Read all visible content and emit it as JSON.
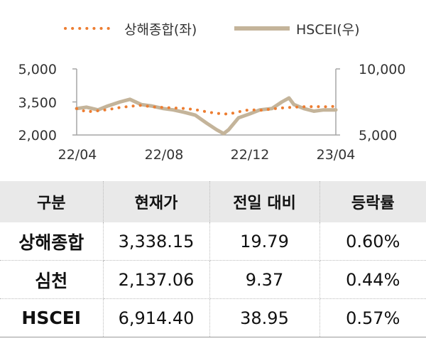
{
  "chart_data": {
    "type": "line",
    "x_ticks": [
      "22/04",
      "22/08",
      "22/12",
      "23/04"
    ],
    "legend": {
      "position": "top",
      "entries": [
        "상해종합(좌)",
        "HSCEI(우)"
      ]
    },
    "y_left": {
      "ticks": [
        "5,000",
        "3,500",
        "2,000"
      ],
      "range": [
        2000,
        5000
      ]
    },
    "y_right": {
      "ticks": [
        "10,000",
        "5,000"
      ],
      "range": [
        5000,
        10000
      ]
    },
    "series": [
      {
        "name": "상해종합(좌)",
        "axis": "left",
        "style": "dotted",
        "color": "#ED7D31",
        "x": [
          "22/04/01",
          "22/04/15",
          "22/05/01",
          "22/05/15",
          "22/06/01",
          "22/06/15",
          "22/07/01",
          "22/07/15",
          "22/08/01",
          "22/08/15",
          "22/09/01",
          "22/09/15",
          "22/10/01",
          "22/10/15",
          "22/11/01",
          "22/11/15",
          "22/12/01",
          "22/12/15",
          "23/01/01",
          "23/01/15",
          "23/02/01",
          "23/02/15",
          "23/03/01",
          "23/03/15",
          "23/04/01"
        ],
        "values": [
          3200,
          3050,
          3100,
          3150,
          3250,
          3300,
          3350,
          3280,
          3250,
          3230,
          3200,
          3150,
          3050,
          2980,
          2950,
          3050,
          3150,
          3120,
          3180,
          3230,
          3260,
          3280,
          3290,
          3280,
          3300
        ]
      },
      {
        "name": "HSCEI(우)",
        "axis": "right",
        "style": "solid",
        "color": "#C4B49A",
        "x": [
          "22/04/01",
          "22/04/15",
          "22/05/01",
          "22/05/15",
          "22/06/01",
          "22/06/15",
          "22/07/01",
          "22/07/15",
          "22/08/01",
          "22/08/15",
          "22/09/01",
          "22/09/15",
          "22/10/01",
          "22/10/15",
          "22/10/25",
          "22/11/01",
          "22/11/15",
          "22/12/01",
          "22/12/15",
          "23/01/01",
          "23/01/15",
          "23/01/25",
          "23/02/01",
          "23/02/15",
          "23/03/01",
          "23/03/15",
          "23/04/01"
        ],
        "values": [
          7000,
          7100,
          6900,
          7200,
          7500,
          7700,
          7300,
          7200,
          7000,
          6900,
          6700,
          6500,
          5900,
          5400,
          5100,
          5400,
          6300,
          6600,
          6900,
          7000,
          7500,
          7800,
          7300,
          7000,
          6800,
          6900,
          6900
        ]
      }
    ]
  },
  "table": {
    "headers": [
      "구분",
      "현재가",
      "전일 대비",
      "등락률"
    ],
    "rows": [
      [
        "상해종합",
        "3,338.15",
        "19.79",
        "0.60%"
      ],
      [
        "심천",
        "2,137.06",
        "9.37",
        "0.44%"
      ],
      [
        "HSCEI",
        "6,914.40",
        "38.95",
        "0.57%"
      ]
    ]
  },
  "colors": {
    "sse": "#ED7D31",
    "hscei": "#C4B49A",
    "axis": "#a6a6a6",
    "header_bg": "#e9e9e9"
  }
}
